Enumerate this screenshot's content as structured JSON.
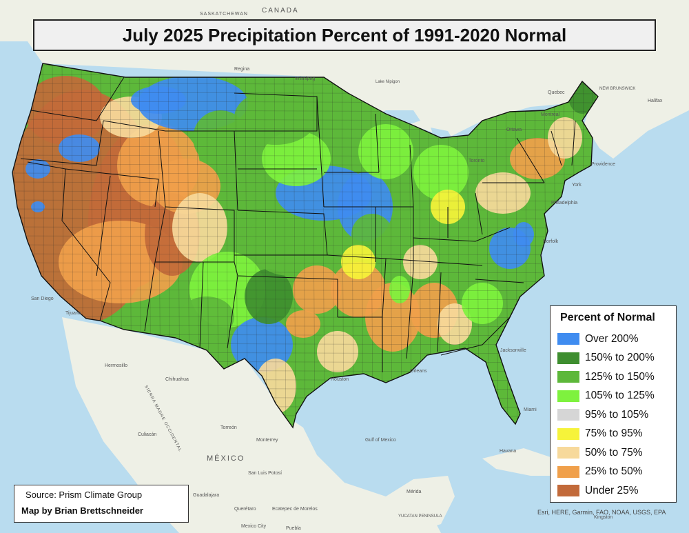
{
  "title": "July 2025 Precipitation Percent of 1991-2020 Normal",
  "legend": {
    "title": "Percent of Normal",
    "items": [
      {
        "label": "Over 200%",
        "color": "#3f8cf0"
      },
      {
        "label": "150% to 200%",
        "color": "#3e8e2f"
      },
      {
        "label": "125% to 150%",
        "color": "#5db83a"
      },
      {
        "label": "105% to 125%",
        "color": "#7ef23e"
      },
      {
        "label": "95% to 105%",
        "color": "#d6d6d6"
      },
      {
        "label": "75% to 95%",
        "color": "#f6f33a"
      },
      {
        "label": "50% to 75%",
        "color": "#f7d99b"
      },
      {
        "label": "25% to 50%",
        "color": "#f0a04b"
      },
      {
        "label": "Under 25%",
        "color": "#c26a3a"
      }
    ]
  },
  "credits": {
    "source": "Source: Prism Climate Group",
    "author": "Map by Brian Brettschneider"
  },
  "attribution": "Esri, HERE, Garmin, FAO, NOAA, USGS, EPA",
  "place_labels": {
    "canada": "CANADA",
    "saskatchewan": "SASKATCHEWAN",
    "regina": "Regina",
    "winnipeg": "Winnipeg",
    "lake_nipigon": "Lake Nipigon",
    "quebec": "Quebec",
    "montreal": "Montreal",
    "ottawa": "Ottawa",
    "toronto": "Toronto",
    "new_brunswick": "NEW BRUNSWICK",
    "halifax": "Halifax",
    "mexico": "MÉXICO",
    "hermosillo": "Hermosillo",
    "chihuahua": "Chihuahua",
    "culiacan": "Culiacán",
    "torreon": "Torreón",
    "monterrey": "Monterrey",
    "san_luis_potosi": "San Luis Potosí",
    "guadalajara": "Guadalajara",
    "queretaro": "Querétaro",
    "ecatepec": "Ecatepec de Morelos",
    "mexico_city": "Mexico City",
    "puebla": "Puebla",
    "tijuana": "Tijuana",
    "san_diego": "San Diego",
    "gulf_of_mexico": "Gulf of Mexico",
    "havana": "Havana",
    "merida": "Mérida",
    "yucatan": "YUCATAN PENINSULA",
    "kingston": "Kingston",
    "miami": "Miami",
    "jacksonville": "Jacksonville",
    "orleans": "Orleans",
    "houston": "Houston",
    "norfolk": "Norfolk",
    "philadelphia": "Philadelphia",
    "york": "York",
    "providence": "Providence",
    "sierra_madre": "SIERRA MADRE OCCIDENTAL"
  }
}
